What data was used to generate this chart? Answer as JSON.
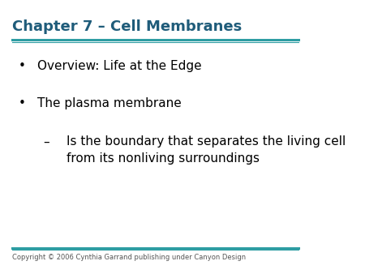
{
  "title": "Chapter 7 – Cell Membranes",
  "title_color": "#1F5C7A",
  "title_fontsize": 13,
  "line_color": "#2E9DA3",
  "bullet1": "Overview: Life at the Edge",
  "bullet2": "The plasma membrane",
  "sub_bullet": "Is the boundary that separates the living cell\nfrom its nonliving surroundings",
  "bullet_color": "#000000",
  "bullet_fontsize": 11,
  "sub_bullet_fontsize": 11,
  "copyright": "Copyright © 2006 Cynthia Garrand publishing under Canyon Design",
  "copyright_fontsize": 6,
  "bg_color": "#FFFFFF"
}
